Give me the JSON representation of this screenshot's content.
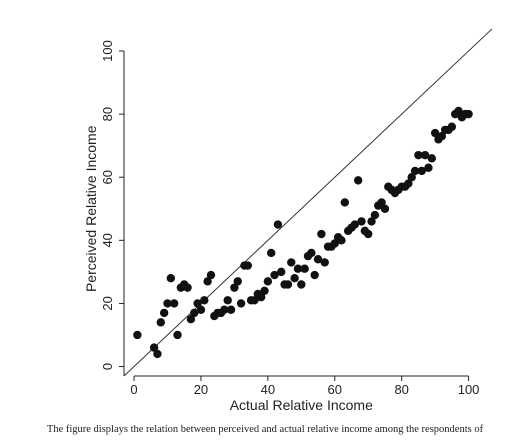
{
  "chart_data": {
    "type": "scatter",
    "title": "",
    "xlabel": "Actual Relative Income",
    "ylabel": "Perceived Relative Income",
    "xlim": [
      -3,
      107
    ],
    "ylim": [
      -3,
      113
    ],
    "xticks": [
      0,
      20,
      40,
      60,
      80,
      100
    ],
    "yticks": [
      0,
      20,
      40,
      60,
      80,
      100
    ],
    "xtick_labels": [
      "0",
      "20",
      "40",
      "60",
      "80",
      "100"
    ],
    "ytick_labels": [
      "0",
      "20",
      "40",
      "60",
      "80",
      "100"
    ],
    "reference_line": {
      "from": [
        -3,
        -3
      ],
      "to": [
        107,
        107
      ],
      "description": "45-degree line"
    },
    "grid": false,
    "legend": "none",
    "marker_color": "#111111",
    "points": [
      [
        1,
        10
      ],
      [
        6,
        6
      ],
      [
        7,
        4
      ],
      [
        8,
        14
      ],
      [
        9,
        17
      ],
      [
        10,
        20
      ],
      [
        11,
        28
      ],
      [
        12,
        20
      ],
      [
        13,
        10
      ],
      [
        14,
        25
      ],
      [
        15,
        26
      ],
      [
        16,
        25
      ],
      [
        17,
        15
      ],
      [
        18,
        17
      ],
      [
        19,
        20
      ],
      [
        20,
        18
      ],
      [
        21,
        21
      ],
      [
        22,
        27
      ],
      [
        23,
        29
      ],
      [
        24,
        16
      ],
      [
        25,
        17
      ],
      [
        26,
        17
      ],
      [
        27,
        18
      ],
      [
        28,
        21
      ],
      [
        29,
        18
      ],
      [
        30,
        25
      ],
      [
        31,
        27
      ],
      [
        32,
        20
      ],
      [
        33,
        32
      ],
      [
        34,
        32
      ],
      [
        35,
        21
      ],
      [
        36,
        21
      ],
      [
        37,
        23
      ],
      [
        38,
        22
      ],
      [
        39,
        24
      ],
      [
        40,
        27
      ],
      [
        41,
        36
      ],
      [
        42,
        29
      ],
      [
        43,
        45
      ],
      [
        44,
        30
      ],
      [
        45,
        26
      ],
      [
        46,
        26
      ],
      [
        47,
        33
      ],
      [
        48,
        28
      ],
      [
        49,
        31
      ],
      [
        50,
        26
      ],
      [
        51,
        31
      ],
      [
        52,
        35
      ],
      [
        53,
        36
      ],
      [
        54,
        29
      ],
      [
        55,
        34
      ],
      [
        56,
        42
      ],
      [
        57,
        33
      ],
      [
        58,
        38
      ],
      [
        59,
        38
      ],
      [
        60,
        39
      ],
      [
        61,
        41
      ],
      [
        62,
        40
      ],
      [
        63,
        52
      ],
      [
        64,
        43
      ],
      [
        65,
        44
      ],
      [
        66,
        45
      ],
      [
        67,
        59
      ],
      [
        68,
        46
      ],
      [
        69,
        43
      ],
      [
        70,
        42
      ],
      [
        71,
        46
      ],
      [
        72,
        48
      ],
      [
        73,
        51
      ],
      [
        74,
        52
      ],
      [
        75,
        50
      ],
      [
        76,
        57
      ],
      [
        77,
        56
      ],
      [
        78,
        55
      ],
      [
        79,
        56
      ],
      [
        80,
        57
      ],
      [
        81,
        57
      ],
      [
        82,
        58
      ],
      [
        83,
        60
      ],
      [
        84,
        62
      ],
      [
        85,
        67
      ],
      [
        86,
        62
      ],
      [
        87,
        67
      ],
      [
        88,
        63
      ],
      [
        89,
        66
      ],
      [
        90,
        74
      ],
      [
        91,
        72
      ],
      [
        92,
        73
      ],
      [
        93,
        75
      ],
      [
        94,
        75
      ],
      [
        95,
        76
      ],
      [
        96,
        80
      ],
      [
        97,
        81
      ],
      [
        98,
        79
      ],
      [
        99,
        80
      ],
      [
        100,
        80
      ]
    ]
  },
  "caption": "The figure displays the relation between perceived and actual relative income among the respondents of"
}
